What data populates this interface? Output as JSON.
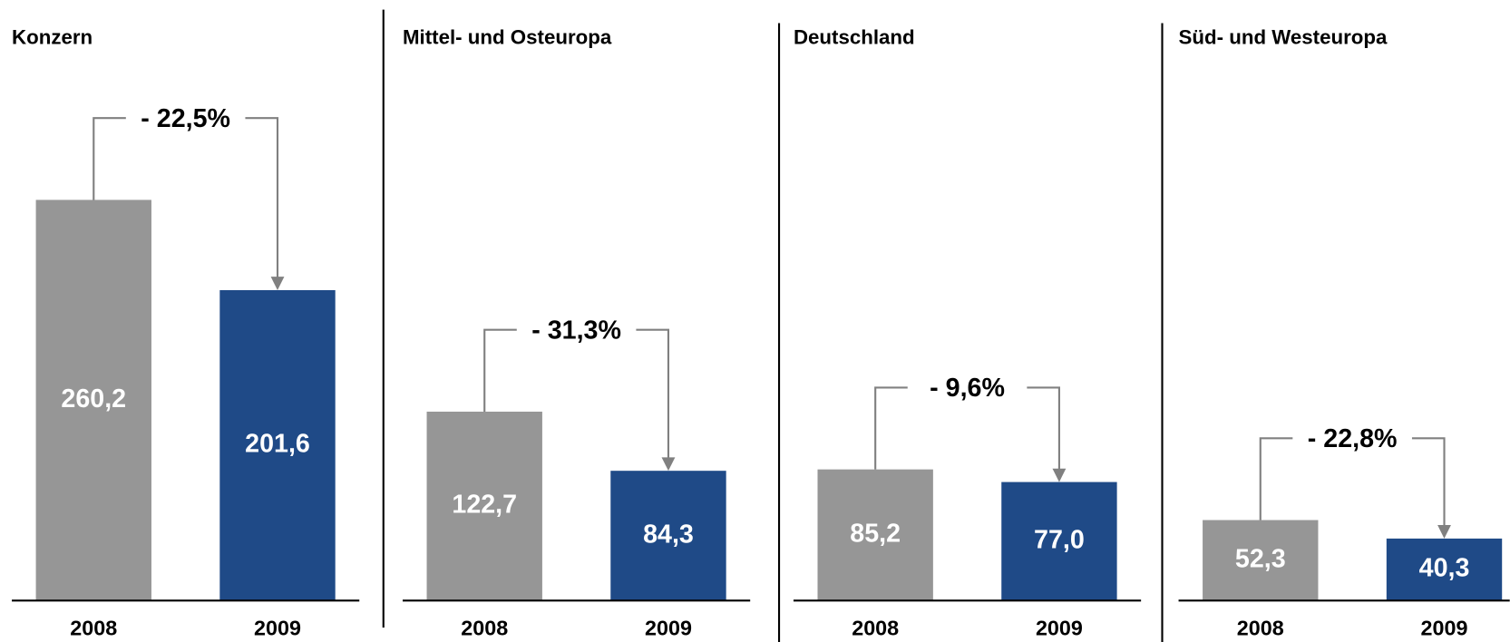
{
  "chart_data": [
    {
      "type": "bar",
      "title": "Konzern",
      "categories": [
        "2008",
        "2009"
      ],
      "values": [
        260.2,
        201.6
      ],
      "value_labels": [
        "260,2",
        "201,6"
      ],
      "colors": [
        "#969696",
        "#1f4a87"
      ],
      "ylim": [
        0,
        300
      ],
      "annotation": "- 22,5%"
    },
    {
      "type": "bar",
      "title": "Mittel- und Osteuropa",
      "categories": [
        "2008",
        "2009"
      ],
      "values": [
        122.7,
        84.3
      ],
      "value_labels": [
        "122,7",
        "84,3"
      ],
      "colors": [
        "#969696",
        "#1f4a87"
      ],
      "ylim": [
        0,
        300
      ],
      "annotation": "- 31,3%"
    },
    {
      "type": "bar",
      "title": "Deutschland",
      "categories": [
        "2008",
        "2009"
      ],
      "values": [
        85.2,
        77.0
      ],
      "value_labels": [
        "85,2",
        "77,0"
      ],
      "colors": [
        "#969696",
        "#1f4a87"
      ],
      "ylim": [
        0,
        300
      ],
      "annotation": "- 9,6%"
    },
    {
      "type": "bar",
      "title": "Süd- und Westeuropa",
      "categories": [
        "2008",
        "2009"
      ],
      "values": [
        52.3,
        40.3
      ],
      "value_labels": [
        "52,3",
        "40,3"
      ],
      "colors": [
        "#969696",
        "#1f4a87"
      ],
      "ylim": [
        0,
        300
      ],
      "annotation": "- 22,8%"
    }
  ]
}
